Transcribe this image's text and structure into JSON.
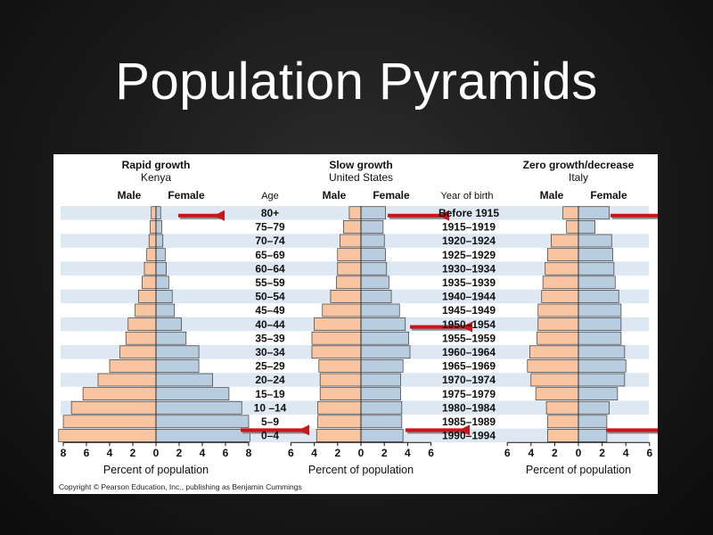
{
  "slide": {
    "title": "Population Pyramids"
  },
  "figure": {
    "header": {
      "age": "Age",
      "year_of_birth": "Year of birth",
      "male": "Male",
      "female": "Female"
    },
    "age_groups": [
      "80+",
      "75–79",
      "70–74",
      "65–69",
      "60–64",
      "55–59",
      "50–54",
      "45–49",
      "40–44",
      "35–39",
      "30–34",
      "25–29",
      "20–24",
      "15–19",
      "10 –14",
      "5–9",
      "0–4"
    ],
    "birth_years": [
      "Before 1915",
      "1915–1919",
      "1920–1924",
      "1925–1929",
      "1930–1934",
      "1935–1939",
      "1940–1944",
      "1945–1949",
      "1950–1954",
      "1955–1959",
      "1960–1964",
      "1965–1969",
      "1970–1974",
      "1975–1979",
      "1980–1984",
      "1985–1989",
      "1990–1994"
    ],
    "xlabel": "Percent of population",
    "copyright": "Copyright © Pearson Education, Inc., publishing as Benjamin Cummings",
    "colors": {
      "male": "#f9c4a0",
      "female": "#b8cde0",
      "stripe": "#dde8f2",
      "arrow": "#c8161d",
      "bar_stroke": "#1e1e1e"
    }
  },
  "chart_data": [
    {
      "type": "bar",
      "orientation": "population-pyramid",
      "title": "Rapid growth",
      "subtitle": "Kenya",
      "categories": [
        "80+",
        "75–79",
        "70–74",
        "65–69",
        "60–64",
        "55–59",
        "50–54",
        "45–49",
        "40–44",
        "35–39",
        "30–34",
        "25–29",
        "20–24",
        "15–19",
        "10 –14",
        "5–9",
        "0–4"
      ],
      "series": [
        {
          "name": "Male",
          "values": [
            0.4,
            0.5,
            0.6,
            0.8,
            1.0,
            1.2,
            1.5,
            1.8,
            2.4,
            2.6,
            3.1,
            4.0,
            5.0,
            6.3,
            7.3,
            8.0,
            8.4
          ]
        },
        {
          "name": "Female",
          "values": [
            0.4,
            0.5,
            0.6,
            0.8,
            0.9,
            1.1,
            1.4,
            1.6,
            2.2,
            2.6,
            3.7,
            3.7,
            4.9,
            6.3,
            7.4,
            8.0,
            8.1
          ]
        }
      ],
      "xlabel": "Percent of population",
      "xticks": [
        "8",
        "6",
        "4",
        "2",
        "0",
        "2",
        "4",
        "6",
        "8"
      ],
      "xlim": [
        -8,
        8
      ],
      "arrows_at": [
        "80+",
        "0–4"
      ]
    },
    {
      "type": "bar",
      "orientation": "population-pyramid",
      "title": "Slow growth",
      "subtitle": "United States",
      "categories": [
        "80+",
        "75–79",
        "70–74",
        "65–69",
        "60–64",
        "55–59",
        "50–54",
        "45–49",
        "40–44",
        "35–39",
        "30–34",
        "25–29",
        "20–24",
        "15–19",
        "10 –14",
        "5–9",
        "0–4"
      ],
      "series": [
        {
          "name": "Male",
          "values": [
            1.0,
            1.5,
            1.8,
            2.0,
            2.0,
            2.1,
            2.6,
            3.3,
            4.0,
            4.2,
            4.2,
            3.6,
            3.5,
            3.5,
            3.7,
            3.7,
            3.8
          ]
        },
        {
          "name": "Female",
          "values": [
            2.1,
            1.9,
            2.0,
            2.1,
            2.2,
            2.4,
            2.6,
            3.3,
            3.8,
            4.1,
            4.2,
            3.6,
            3.4,
            3.4,
            3.5,
            3.5,
            3.6
          ]
        }
      ],
      "xlabel": "Percent of population",
      "xticks": [
        "6",
        "4",
        "2",
        "0",
        "2",
        "4",
        "6"
      ],
      "xlim": [
        -6,
        6
      ],
      "arrows_at": [
        "80+",
        "40–44",
        "0–4"
      ]
    },
    {
      "type": "bar",
      "orientation": "population-pyramid",
      "title": "Zero growth/decrease",
      "subtitle": "Italy",
      "categories": [
        "80+",
        "75–79",
        "70–74",
        "65–69",
        "60–64",
        "55–59",
        "50–54",
        "45–49",
        "40–44",
        "35–39",
        "30–34",
        "25–29",
        "20–24",
        "15–19",
        "10 –14",
        "5–9",
        "0–4"
      ],
      "series": [
        {
          "name": "Male",
          "values": [
            1.3,
            1.0,
            2.3,
            2.6,
            2.8,
            3.0,
            3.1,
            3.4,
            3.4,
            3.5,
            4.1,
            4.3,
            4.0,
            3.6,
            2.7,
            2.6,
            2.6
          ]
        },
        {
          "name": "Female",
          "values": [
            2.6,
            1.4,
            2.8,
            2.9,
            3.0,
            3.1,
            3.4,
            3.6,
            3.6,
            3.6,
            3.9,
            4.0,
            3.9,
            3.3,
            2.6,
            2.4,
            2.4
          ]
        }
      ],
      "xlabel": "Percent of population",
      "xticks": [
        "6",
        "4",
        "2",
        "0",
        "2",
        "4",
        "6"
      ],
      "xlim": [
        -6,
        6
      ],
      "arrows_at": [
        "80+",
        "0–4"
      ]
    }
  ]
}
